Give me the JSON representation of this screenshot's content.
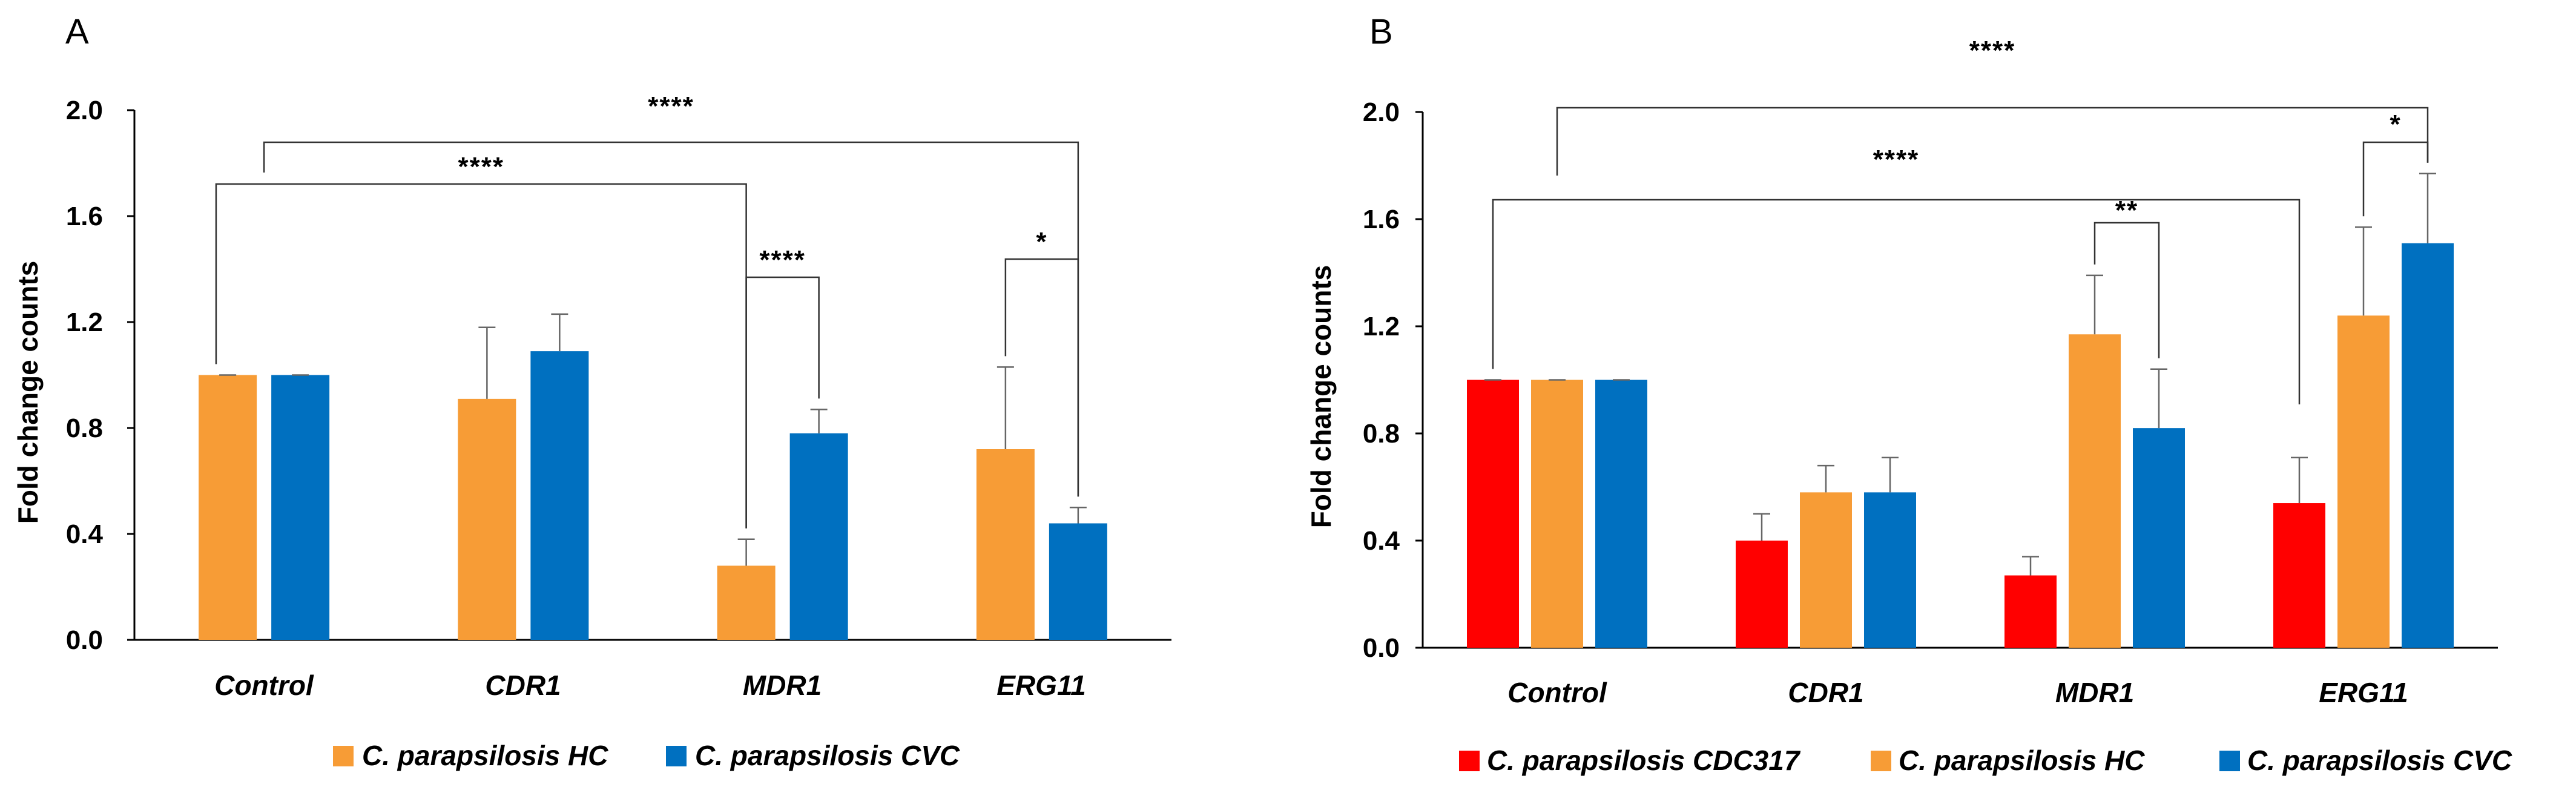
{
  "chart_data": [
    {
      "type": "bar",
      "panel_label": "A",
      "categories": [
        "Control",
        "CDR1",
        "MDR1",
        "ERG11"
      ],
      "ylabel": "Fold change counts",
      "xlabel": "",
      "ylim": [
        0,
        2.0
      ],
      "yticks": [
        "0.0",
        "0.4",
        "0.8",
        "1.2",
        "1.6",
        "2.0"
      ],
      "legend_position": "bottom",
      "series": [
        {
          "name": "C. parapsilosis HC",
          "color": "#F79C36",
          "values": [
            1.0,
            0.91,
            0.28,
            0.72
          ],
          "errors": [
            0.0,
            0.27,
            0.1,
            0.31
          ]
        },
        {
          "name": "C. parapsilosis CVC",
          "color": "#0070C0",
          "values": [
            1.0,
            1.09,
            0.78,
            0.44
          ],
          "errors": [
            0.0,
            0.14,
            0.09,
            0.06
          ]
        }
      ],
      "significance": [
        {
          "label": "****",
          "from": {
            "category": 0,
            "series": "center"
          },
          "to": {
            "category": 3,
            "series": 1
          }
        },
        {
          "label": "****",
          "from": {
            "category": 0,
            "series": "left"
          },
          "to": {
            "category": 2,
            "series": 0
          }
        },
        {
          "label": "****",
          "from": {
            "category": 2,
            "series": 0
          },
          "to": {
            "category": 2,
            "series": 1
          }
        },
        {
          "label": "*",
          "from": {
            "category": 3,
            "series": 0
          },
          "to": {
            "category": 3,
            "series": 1
          }
        }
      ]
    },
    {
      "type": "bar",
      "panel_label": "B",
      "categories": [
        "Control",
        "CDR1",
        "MDR1",
        "ERG11"
      ],
      "ylabel": "Fold change counts",
      "xlabel": "",
      "ylim": [
        0,
        2.0
      ],
      "yticks": [
        "0.0",
        "0.4",
        "0.8",
        "1.2",
        "1.6",
        "2.0"
      ],
      "legend_position": "bottom",
      "series": [
        {
          "name": "C. parapsilosis CDC317",
          "color": "#FF0000",
          "values": [
            1.0,
            0.4,
            0.27,
            0.54
          ],
          "errors": [
            0.0,
            0.1,
            0.07,
            0.17
          ]
        },
        {
          "name": "C. parapsilosis HC",
          "color": "#F79C36",
          "values": [
            1.0,
            0.58,
            1.17,
            1.24
          ],
          "errors": [
            0.0,
            0.1,
            0.22,
            0.33
          ]
        },
        {
          "name": "C. parapsilosis CVC",
          "color": "#0070C0",
          "values": [
            1.0,
            0.58,
            0.82,
            1.51
          ],
          "errors": [
            0.0,
            0.13,
            0.22,
            0.26
          ]
        }
      ],
      "significance": [
        {
          "label": "****",
          "from": {
            "category": 0,
            "series": 1
          },
          "to": {
            "category": 3,
            "series": 2
          }
        },
        {
          "label": "****",
          "from": {
            "category": 0,
            "series": 0
          },
          "to": {
            "category": 3,
            "series": 0
          }
        },
        {
          "label": "**",
          "from": {
            "category": 2,
            "series": 1
          },
          "to": {
            "category": 2,
            "series": 2
          }
        },
        {
          "label": "*",
          "from": {
            "category": 3,
            "series": 1
          },
          "to": {
            "category": 3,
            "series": 2
          }
        }
      ]
    }
  ]
}
